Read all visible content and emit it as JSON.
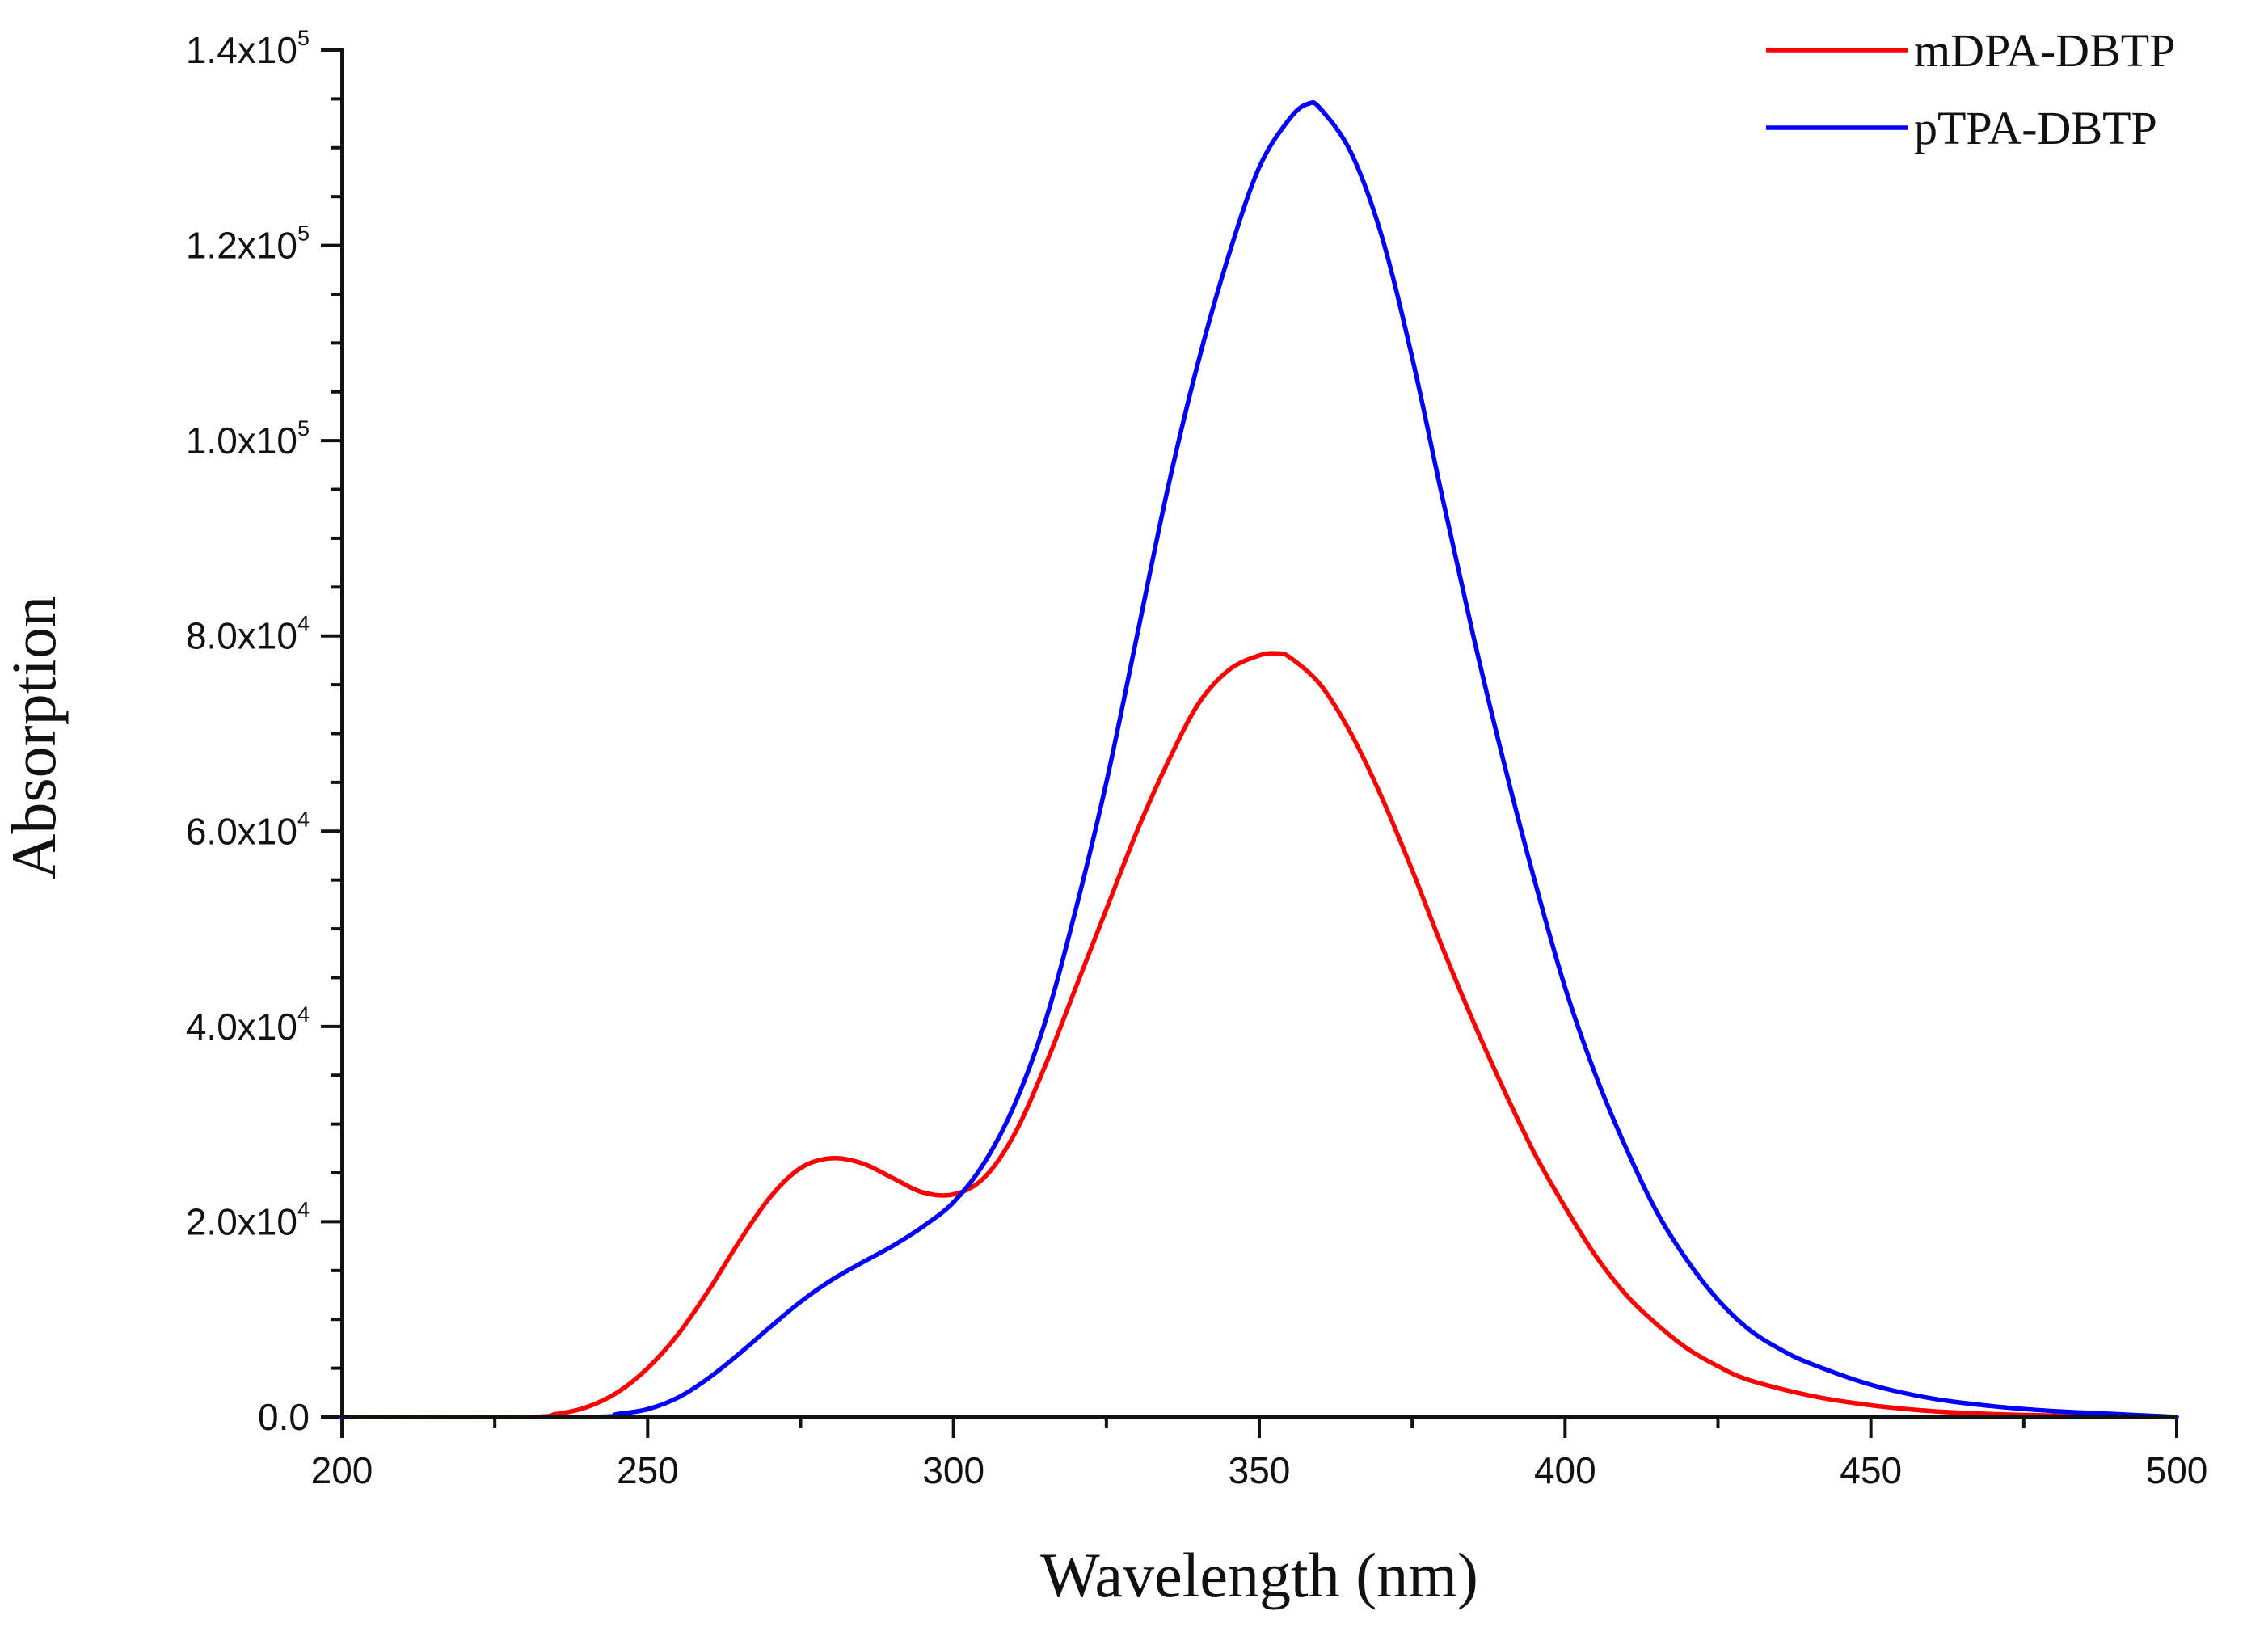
{
  "chart_data": {
    "type": "line",
    "xlabel": "Wavelength (nm)",
    "ylabel": "Absorption",
    "xlim": [
      200,
      500
    ],
    "ylim": [
      0,
      140000
    ],
    "x_ticks": [
      200,
      250,
      300,
      350,
      400,
      450,
      500
    ],
    "y_ticks": [
      {
        "value": 0,
        "mantissa": "0.0",
        "exponent": ""
      },
      {
        "value": 20000,
        "mantissa": "2.0x10",
        "exponent": "4"
      },
      {
        "value": 40000,
        "mantissa": "4.0x10",
        "exponent": "4"
      },
      {
        "value": 60000,
        "mantissa": "6.0x10",
        "exponent": "4"
      },
      {
        "value": 80000,
        "mantissa": "8.0x10",
        "exponent": "4"
      },
      {
        "value": 100000,
        "mantissa": "1.0x10",
        "exponent": "5"
      },
      {
        "value": 120000,
        "mantissa": "1.2x10",
        "exponent": "5"
      },
      {
        "value": 140000,
        "mantissa": "1.4x10",
        "exponent": "5"
      }
    ],
    "legend_position": "top-right",
    "series": [
      {
        "name": "mDPA-DBTP",
        "color": "#ff0000",
        "x": [
          200,
          230,
          235,
          240,
          245,
          250,
          255,
          260,
          265,
          270,
          275,
          280,
          285,
          290,
          295,
          300,
          305,
          310,
          315,
          320,
          325,
          330,
          335,
          340,
          345,
          350,
          353,
          355,
          360,
          365,
          370,
          375,
          380,
          385,
          390,
          395,
          400,
          405,
          410,
          415,
          420,
          425,
          430,
          440,
          450,
          460,
          470,
          480,
          490,
          500
        ],
        "y": [
          0,
          0,
          300,
          1000,
          2500,
          5000,
          8500,
          13000,
          18000,
          22500,
          25500,
          26500,
          26000,
          24500,
          23000,
          22800,
          24500,
          29000,
          36000,
          44000,
          52000,
          60000,
          67000,
          73000,
          76500,
          78000,
          78200,
          77800,
          75000,
          70000,
          63500,
          56000,
          48000,
          40500,
          33500,
          27000,
          21500,
          16500,
          12500,
          9500,
          7000,
          5200,
          3800,
          2200,
          1200,
          600,
          300,
          150,
          50,
          0
        ]
      },
      {
        "name": "pTPA-DBTP",
        "color": "#0000ff",
        "x": [
          200,
          240,
          245,
          250,
          255,
          260,
          265,
          270,
          275,
          280,
          285,
          290,
          295,
          300,
          305,
          310,
          315,
          320,
          325,
          330,
          335,
          340,
          345,
          350,
          355,
          358,
          360,
          365,
          370,
          375,
          380,
          385,
          390,
          395,
          400,
          405,
          410,
          415,
          420,
          425,
          430,
          435,
          440,
          450,
          460,
          470,
          480,
          490,
          500
        ],
        "y": [
          0,
          0,
          300,
          800,
          2000,
          4000,
          6500,
          9200,
          11800,
          14000,
          15800,
          17500,
          19500,
          22000,
          26000,
          32000,
          40500,
          52000,
          65000,
          80000,
          95000,
          108000,
          119000,
          128000,
          133000,
          134500,
          134000,
          129500,
          121000,
          108500,
          94000,
          80000,
          67000,
          55000,
          44000,
          35000,
          27500,
          21000,
          16000,
          12000,
          9000,
          7000,
          5500,
          3300,
          1900,
          1100,
          600,
          300,
          0
        ]
      }
    ]
  }
}
